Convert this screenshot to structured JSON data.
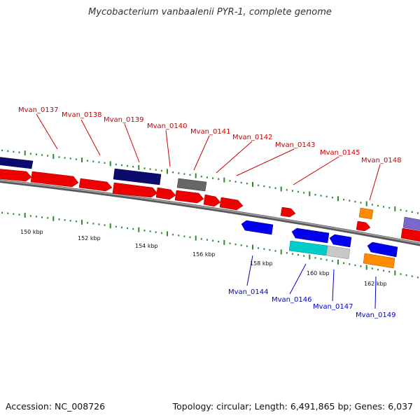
{
  "title": "Mycobacterium vanbaalenii PYR-1, complete genome",
  "accession": "Accession: NC_008726",
  "topology": "Topology: circular; Length: 6,491,865 bp; Genes: 6,037",
  "colors": {
    "backbone": "#777777",
    "tick": "#2e8b2e",
    "forward_gene": "#ee0000",
    "reverse_gene": "#0000ee",
    "navy_gene": "#0b0b6e",
    "gray_gene": "#666666",
    "orange_gene": "#ff8c00",
    "cyan_gene": "#00cccc",
    "lightgray_gene": "#c8c8c8",
    "lavender_gene": "#7b68cc",
    "top_label": "#cc0000",
    "bottom_label": "#0000cc"
  },
  "kbp_labels": [
    "150 kbp",
    "152 kbp",
    "154 kbp",
    "156 kbp",
    "158 kbp",
    "160 kbp",
    "162 kbp"
  ],
  "top_gene_labels": [
    "Mvan_0137",
    "Mvan_0138",
    "Mvan_0139",
    "Mvan_0140",
    "Mvan_0141",
    "Mvan_0142",
    "Mvan_0143",
    "Mvan_0145",
    "Mvan_0148"
  ],
  "bottom_gene_labels": [
    "Mvan_0144",
    "Mvan_0146",
    "Mvan_0147",
    "Mvan_0149"
  ]
}
